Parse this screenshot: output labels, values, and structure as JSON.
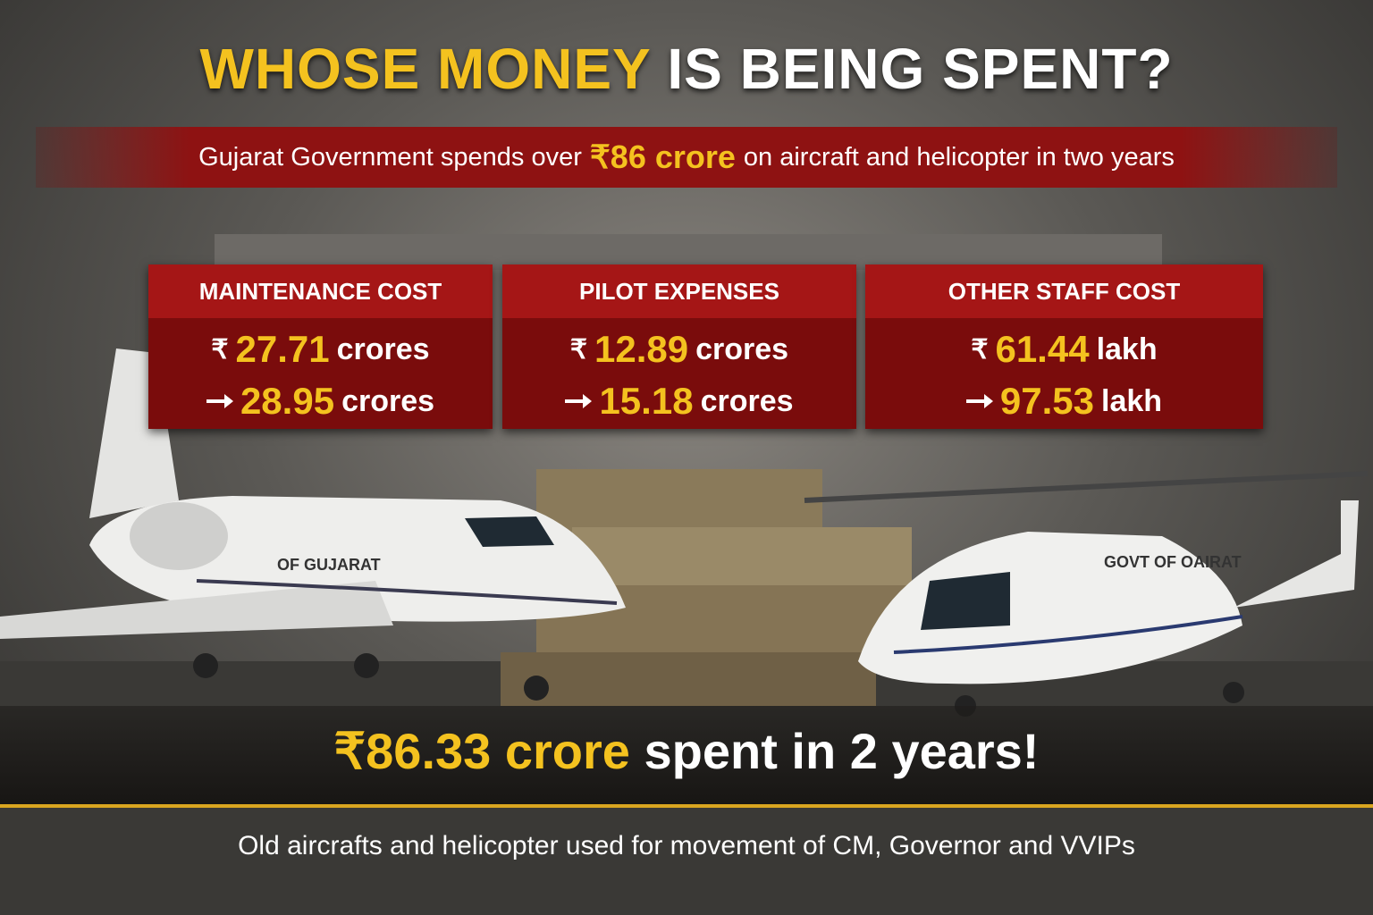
{
  "header": {
    "title_highlight": "WHOSE MONEY",
    "title_rest": "IS BEING SPENT?",
    "subtitle_before": "Gujarat Government spends over",
    "subtitle_highlight": "₹86 crore",
    "subtitle_after": "on aircraft and helicopter in two years"
  },
  "cards": [
    {
      "label": "MAINTENANCE COST",
      "rows": [
        {
          "currency": "₹",
          "amount": "27.71",
          "unit": "crores"
        },
        {
          "amount": "28.95",
          "unit": "crores"
        }
      ]
    },
    {
      "label": "PILOT EXPENSES",
      "rows": [
        {
          "currency": "₹",
          "amount": "12.89",
          "unit": "crores"
        },
        {
          "amount": "15.18",
          "unit": "crores"
        }
      ]
    },
    {
      "label": "OTHER STAFF COST",
      "rows": [
        {
          "currency": "₹",
          "amount": "61.44",
          "unit": "lakh"
        },
        {
          "amount": "97.53",
          "unit": "lakh"
        }
      ]
    }
  ],
  "images": {
    "aircraft_label": "OF GUJARAT",
    "helicopter_label": "GOVT OF OAIRAT"
  },
  "total": {
    "highlight": "₹86.33 crore",
    "rest": "spent in 2 years!"
  },
  "footer": {
    "note": "Old aircrafts and helicopter used for movement of CM, Governor and VVIPs"
  }
}
